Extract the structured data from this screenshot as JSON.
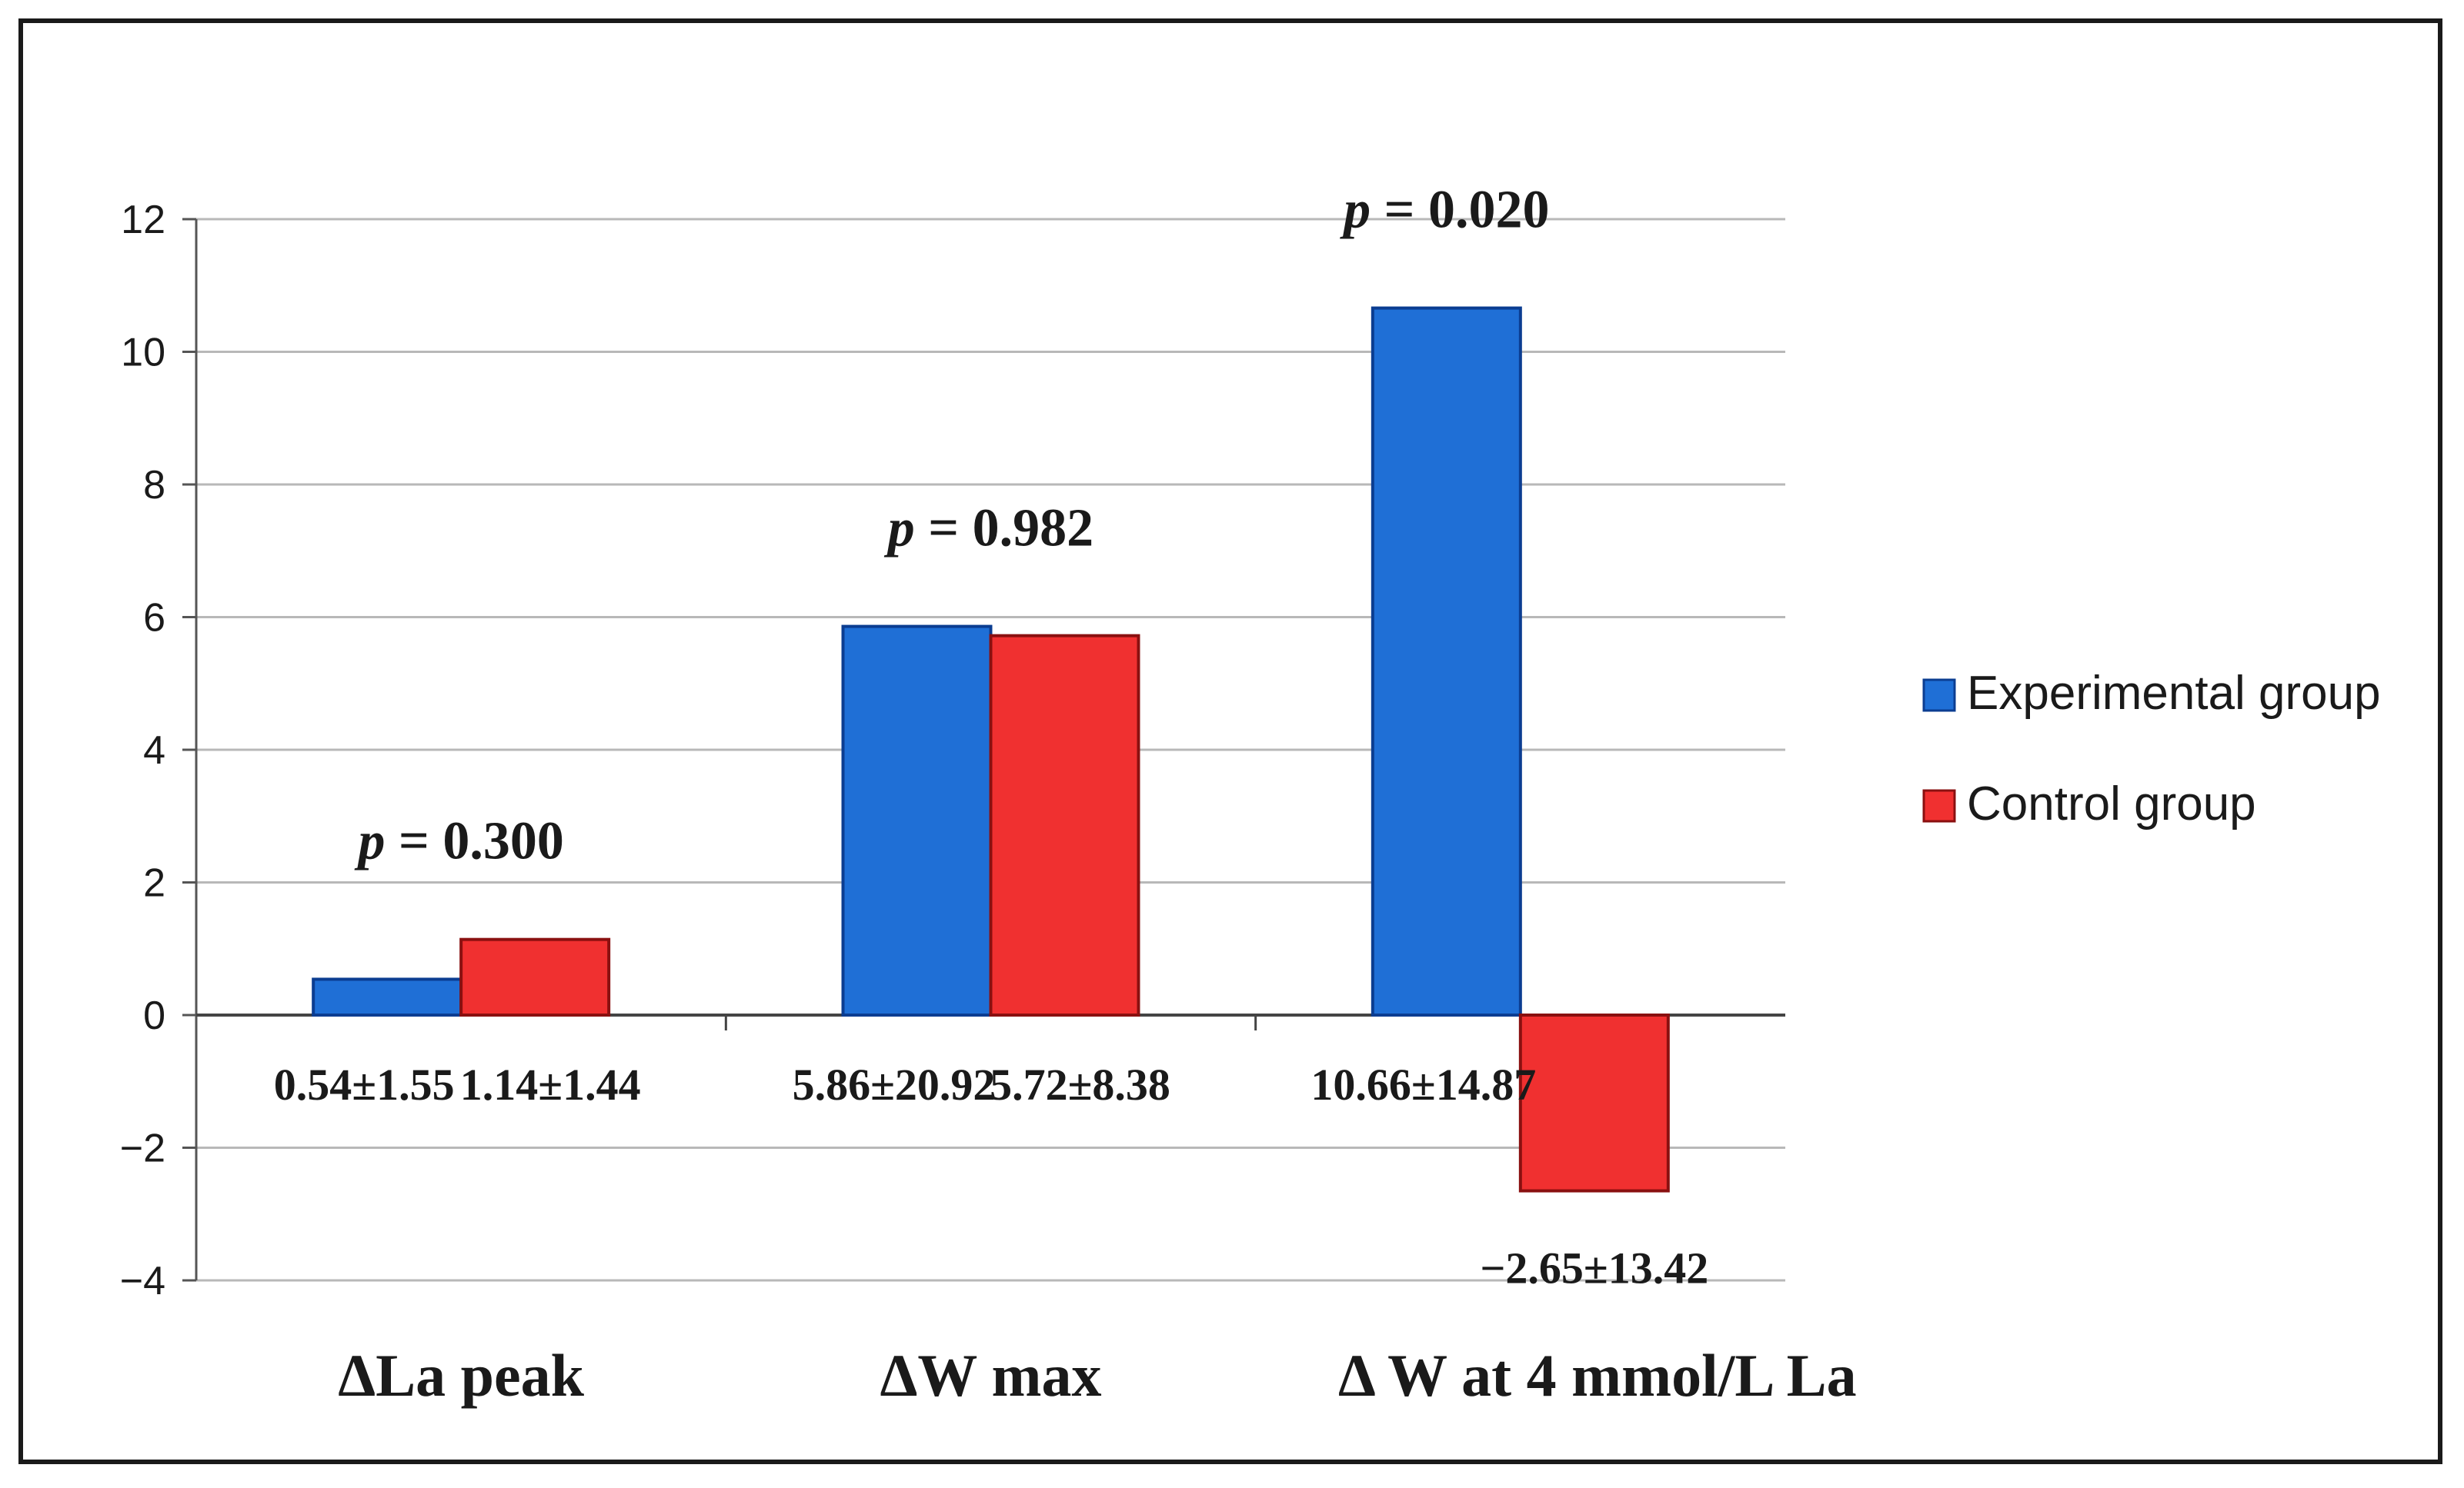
{
  "chart_data": {
    "type": "bar",
    "title": "",
    "xlabel": "",
    "ylabel": "",
    "ylim": [
      -4,
      12
    ],
    "yticks": [
      12,
      10,
      8,
      6,
      4,
      2,
      0,
      -2,
      -4
    ],
    "ytick_labels": [
      "12",
      "10",
      "8",
      "6",
      "4",
      "2",
      "0",
      "−2",
      "−4"
    ],
    "grid": true,
    "legend_position": "right",
    "colors": {
      "experimental": "#1f6fd6",
      "experimental_border": "#0b3d91",
      "control": "#f03030",
      "control_border": "#8a1010",
      "grid": "#b8b8b8",
      "axis": "#555555"
    },
    "categories": [
      "ΔLa peak",
      "ΔW max",
      "Δ W at 4 mmol/L La"
    ],
    "series": [
      {
        "name": "Experimental group",
        "values": [
          0.54,
          5.86,
          10.66
        ],
        "labels": [
          "0.54±1.55",
          "5.86±20.92",
          "10.66±14.87"
        ]
      },
      {
        "name": "Control group",
        "values": [
          1.14,
          5.72,
          -2.65
        ],
        "labels": [
          "1.14±1.44",
          "5.72±8.38",
          "−2.65±13.42"
        ]
      }
    ],
    "p_values": [
      {
        "p": "p",
        "eq": " = 0.300"
      },
      {
        "p": "p",
        "eq": " = 0.982"
      },
      {
        "p": "p",
        "eq": " = 0.020"
      }
    ]
  }
}
